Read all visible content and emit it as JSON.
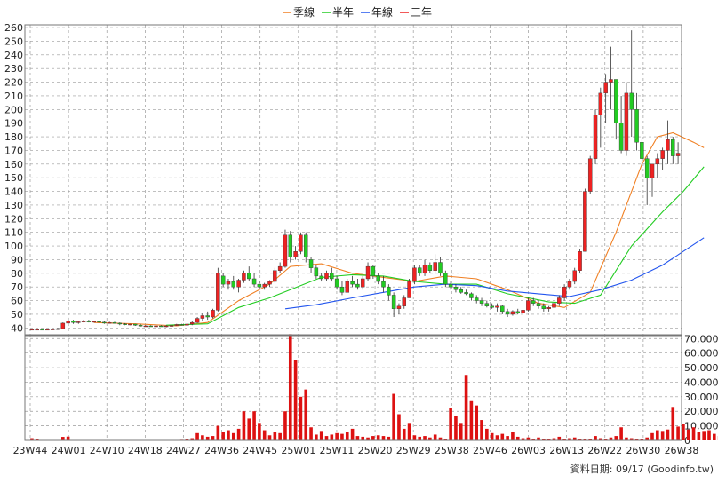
{
  "legend": [
    {
      "label": "季線",
      "color": "#f07f22"
    },
    {
      "label": "半年",
      "color": "#22cc22"
    },
    {
      "label": "年線",
      "color": "#2255ee"
    },
    {
      "label": "三年",
      "color": "#ee2222"
    }
  ],
  "footer_text": "資料日期: 09/17  (Goodinfo.tw)",
  "colors": {
    "up": "#ee2222",
    "down": "#22cc22",
    "volume": "#dd1111",
    "grid": "#9a9a9a"
  },
  "chart_data": [
    {
      "type": "candlestick",
      "ylim": [
        35,
        262
      ],
      "yticks": [
        40,
        50,
        60,
        70,
        80,
        90,
        100,
        110,
        120,
        130,
        140,
        150,
        160,
        170,
        180,
        190,
        200,
        210,
        220,
        230,
        240,
        250,
        260
      ],
      "xlabels": [
        "23W44",
        "24W01",
        "24W10",
        "24W18",
        "24W27",
        "24W36",
        "24W45",
        "25W01",
        "25W11",
        "25W20",
        "25W29",
        "25W38",
        "25W46",
        "26W03",
        "26W13",
        "26W22",
        "26W30",
        "26W38"
      ],
      "candles": [
        [
          39,
          39.5,
          38.5,
          39
        ],
        [
          39,
          39.5,
          38.5,
          39
        ],
        [
          39,
          39.5,
          38.5,
          38.8
        ],
        [
          38.8,
          39.5,
          38.5,
          39
        ],
        [
          39,
          39.5,
          38.5,
          39.2
        ],
        [
          39.2,
          40,
          38.5,
          39.5
        ],
        [
          39.5,
          44,
          39,
          43.5
        ],
        [
          43.5,
          48,
          41,
          45
        ],
        [
          45,
          46,
          43,
          44
        ],
        [
          44,
          45,
          43,
          44.5
        ],
        [
          44.5,
          46,
          44,
          45
        ],
        [
          45,
          46,
          44,
          44.5
        ],
        [
          44.5,
          45,
          44,
          44.8
        ],
        [
          44.8,
          45,
          44,
          44.2
        ],
        [
          44.2,
          45,
          43,
          44
        ],
        [
          44,
          44.5,
          43.5,
          44
        ],
        [
          44,
          44.5,
          43.5,
          43.5
        ],
        [
          43.5,
          44,
          42,
          43
        ],
        [
          43,
          43.5,
          42,
          42.5
        ],
        [
          42.5,
          43,
          42,
          42.8
        ],
        [
          42.8,
          43,
          41.5,
          42
        ],
        [
          42,
          43,
          41,
          41.5
        ],
        [
          41.5,
          42,
          41,
          41.5
        ],
        [
          41.5,
          42,
          41,
          41.2
        ],
        [
          41.2,
          42,
          41,
          41.5
        ],
        [
          41.5,
          42,
          41,
          41
        ],
        [
          41,
          42,
          40.5,
          41.5
        ],
        [
          41.5,
          42,
          41,
          41.8
        ],
        [
          41.8,
          43,
          41.5,
          42.5
        ],
        [
          42.5,
          43,
          41.8,
          42
        ],
        [
          42,
          43,
          41.5,
          42.8
        ],
        [
          42.8,
          45,
          42,
          44
        ],
        [
          44,
          48,
          43.5,
          47
        ],
        [
          47,
          51,
          45,
          49
        ],
        [
          49,
          52,
          46,
          48
        ],
        [
          48,
          54,
          47,
          53
        ],
        [
          53,
          84,
          52,
          80
        ],
        [
          78,
          80,
          70,
          72
        ],
        [
          72,
          76,
          68,
          74
        ],
        [
          74,
          78,
          68,
          70
        ],
        [
          70,
          76,
          66,
          75
        ],
        [
          75,
          82,
          73,
          80
        ],
        [
          80,
          85,
          74,
          76
        ],
        [
          76,
          80,
          70,
          72
        ],
        [
          72,
          74,
          69,
          70
        ],
        [
          70,
          73,
          68,
          72
        ],
        [
          72,
          75,
          70,
          74
        ],
        [
          74,
          84,
          73,
          82
        ],
        [
          82,
          88,
          80,
          85
        ],
        [
          85,
          112,
          84,
          108
        ],
        [
          108,
          111,
          88,
          92
        ],
        [
          92,
          100,
          90,
          96
        ],
        [
          96,
          110,
          94,
          108
        ],
        [
          108,
          110,
          88,
          92
        ],
        [
          90,
          92,
          80,
          84
        ],
        [
          84,
          86,
          76,
          78
        ],
        [
          78,
          80,
          74,
          76
        ],
        [
          76,
          82,
          74,
          80
        ],
        [
          80,
          84,
          74,
          76
        ],
        [
          76,
          78,
          68,
          70
        ],
        [
          70,
          74,
          64,
          66
        ],
        [
          66,
          76,
          66,
          74
        ],
        [
          74,
          78,
          70,
          72
        ],
        [
          72,
          76,
          68,
          70
        ],
        [
          70,
          78,
          68,
          76
        ],
        [
          76,
          88,
          74,
          85
        ],
        [
          85,
          86,
          76,
          78
        ],
        [
          78,
          80,
          72,
          74
        ],
        [
          74,
          78,
          66,
          70
        ],
        [
          70,
          72,
          60,
          64
        ],
        [
          64,
          66,
          48,
          54
        ],
        [
          54,
          58,
          50,
          56
        ],
        [
          56,
          64,
          54,
          62
        ],
        [
          62,
          76,
          62,
          74
        ],
        [
          74,
          86,
          72,
          84
        ],
        [
          84,
          86,
          78,
          80
        ],
        [
          80,
          90,
          78,
          86
        ],
        [
          86,
          88,
          80,
          82
        ],
        [
          82,
          94,
          80,
          88
        ],
        [
          88,
          92,
          78,
          80
        ],
        [
          80,
          82,
          70,
          72
        ],
        [
          72,
          74,
          68,
          70
        ],
        [
          70,
          72,
          66,
          68
        ],
        [
          68,
          70,
          65,
          66
        ],
        [
          66,
          68,
          64,
          65
        ],
        [
          65,
          66,
          60,
          62
        ],
        [
          62,
          64,
          58,
          60
        ],
        [
          60,
          62,
          56,
          58
        ],
        [
          58,
          60,
          55,
          56
        ],
        [
          56,
          58,
          54,
          55
        ],
        [
          55,
          58,
          52,
          56
        ],
        [
          56,
          57,
          50,
          52
        ],
        [
          52,
          54,
          48,
          50
        ],
        [
          50,
          53,
          49,
          52
        ],
        [
          52,
          54,
          50,
          51
        ],
        [
          51,
          54,
          50,
          53
        ],
        [
          53,
          62,
          52,
          60
        ],
        [
          60,
          62,
          56,
          58
        ],
        [
          58,
          60,
          54,
          56
        ],
        [
          56,
          58,
          52,
          54
        ],
        [
          54,
          56,
          52,
          55
        ],
        [
          55,
          60,
          54,
          58
        ],
        [
          58,
          64,
          56,
          62
        ],
        [
          62,
          72,
          60,
          70
        ],
        [
          70,
          76,
          68,
          74
        ],
        [
          74,
          84,
          72,
          82
        ],
        [
          82,
          98,
          80,
          96
        ],
        [
          96,
          142,
          96,
          140
        ],
        [
          140,
          166,
          138,
          164
        ],
        [
          164,
          200,
          160,
          196
        ],
        [
          196,
          216,
          172,
          212
        ],
        [
          212,
          226,
          190,
          220
        ],
        [
          220,
          246,
          200,
          222
        ],
        [
          222,
          222,
          178,
          190
        ],
        [
          190,
          210,
          168,
          170
        ],
        [
          170,
          220,
          166,
          212
        ],
        [
          212,
          258,
          180,
          200
        ],
        [
          200,
          212,
          170,
          176
        ],
        [
          176,
          178,
          150,
          164
        ],
        [
          164,
          166,
          130,
          150
        ],
        [
          150,
          160,
          136,
          160
        ],
        [
          160,
          168,
          150,
          164
        ],
        [
          164,
          172,
          156,
          170
        ],
        [
          170,
          192,
          160,
          178
        ],
        [
          178,
          180,
          160,
          166
        ],
        [
          166,
          176,
          160,
          168
        ]
      ],
      "series": [
        {
          "name": "季線",
          "color": "#f07f22",
          "values": [
            [
              12,
              44
            ],
            [
              20,
              43
            ],
            [
              28,
              41.5
            ],
            [
              34,
              44
            ],
            [
              40,
              60
            ],
            [
              46,
              72
            ],
            [
              50,
              85
            ],
            [
              56,
              87
            ],
            [
              62,
              80
            ],
            [
              68,
              77
            ],
            [
              74,
              74
            ],
            [
              80,
              78
            ],
            [
              86,
              76
            ],
            [
              92,
              68
            ],
            [
              98,
              58
            ],
            [
              103,
              55
            ],
            [
              108,
              66
            ],
            [
              113,
              110
            ],
            [
              118,
              160
            ],
            [
              121,
              180
            ],
            [
              124,
              183
            ],
            [
              128,
              176
            ],
            [
              130,
              172
            ]
          ]
        },
        {
          "name": "半年",
          "color": "#22cc22",
          "values": [
            [
              26,
              42
            ],
            [
              34,
              43
            ],
            [
              40,
              55
            ],
            [
              46,
              62
            ],
            [
              50,
              68
            ],
            [
              56,
              77
            ],
            [
              62,
              79
            ],
            [
              68,
              78
            ],
            [
              74,
              74
            ],
            [
              80,
              72
            ],
            [
              86,
              72
            ],
            [
              92,
              65
            ],
            [
              100,
              59
            ],
            [
              105,
              58
            ],
            [
              110,
              64
            ],
            [
              116,
              100
            ],
            [
              122,
              125
            ],
            [
              126,
              140
            ],
            [
              130,
              158
            ]
          ]
        },
        {
          "name": "年線",
          "color": "#2255ee",
          "values": [
            [
              49,
              54
            ],
            [
              55,
              57
            ],
            [
              62,
              62
            ],
            [
              68,
              66
            ],
            [
              74,
              70
            ],
            [
              80,
              72
            ],
            [
              86,
              71
            ],
            [
              92,
              67
            ],
            [
              98,
              65
            ],
            [
              104,
              63
            ],
            [
              110,
              68
            ],
            [
              116,
              75
            ],
            [
              122,
              86
            ],
            [
              126,
              96
            ],
            [
              130,
              106
            ]
          ]
        }
      ]
    },
    {
      "type": "bar",
      "ylim": [
        0,
        72000
      ],
      "yticks": [
        0,
        10000,
        20000,
        30000,
        40000,
        50000,
        60000,
        70000
      ],
      "ytick_labels": [
        "0",
        "10,000",
        "20,000",
        "30,000",
        "40,000",
        "50,000",
        "60,000",
        "70,000"
      ],
      "values": [
        1500,
        800,
        200,
        300,
        200,
        300,
        2400,
        2600,
        300,
        200,
        300,
        200,
        300,
        200,
        300,
        200,
        200,
        300,
        200,
        300,
        200,
        200,
        300,
        200,
        300,
        200,
        300,
        200,
        300,
        400,
        600,
        1500,
        5000,
        3500,
        2500,
        3000,
        10000,
        6000,
        7000,
        5000,
        8000,
        20000,
        15000,
        20000,
        12000,
        7000,
        3500,
        6000,
        5000,
        20000,
        73000,
        55000,
        30000,
        35000,
        9000,
        4000,
        6500,
        3000,
        4000,
        5000,
        4500,
        6000,
        8000,
        3000,
        2500,
        2000,
        3000,
        3500,
        3000,
        2500,
        32000,
        18000,
        8000,
        12000,
        3500,
        2500,
        3000,
        2000,
        4000,
        2000,
        1000,
        22000,
        17000,
        12000,
        45000,
        27000,
        24000,
        14000,
        8000,
        5000,
        3500,
        4500,
        3000,
        5500,
        2500,
        1500,
        2000,
        1000,
        2000,
        1000,
        800,
        1500,
        2500,
        1000,
        1500,
        2000,
        1000,
        800,
        1200,
        3000,
        1500,
        1000,
        2000,
        3000,
        9000,
        2000,
        1500,
        1000,
        800,
        2000,
        5000,
        7000,
        6500,
        7500,
        23000,
        9500,
        11000,
        7500,
        9000,
        6000,
        6500,
        7000,
        4500,
        3000,
        1500,
        3000,
        2500
      ]
    }
  ]
}
